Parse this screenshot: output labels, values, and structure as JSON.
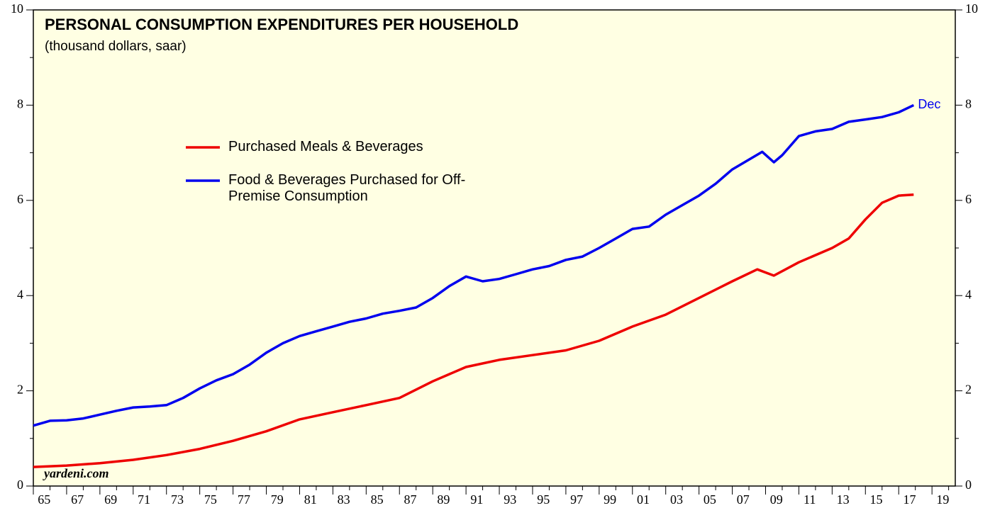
{
  "chart_data": {
    "type": "line",
    "title": "PERSONAL CONSUMPTION EXPENDITURES PER HOUSEHOLD",
    "subtitle": "(thousand dollars, saar)",
    "annotations": {
      "end_label": "Dec",
      "source": "yardeni.com"
    },
    "xlim": [
      1965,
      2020.4
    ],
    "xticks": [
      {
        "value": 1965,
        "label": "65"
      },
      {
        "value": 1967,
        "label": "67"
      },
      {
        "value": 1969,
        "label": "69"
      },
      {
        "value": 1971,
        "label": "71"
      },
      {
        "value": 1973,
        "label": "73"
      },
      {
        "value": 1975,
        "label": "75"
      },
      {
        "value": 1977,
        "label": "77"
      },
      {
        "value": 1979,
        "label": "79"
      },
      {
        "value": 1981,
        "label": "81"
      },
      {
        "value": 1983,
        "label": "83"
      },
      {
        "value": 1985,
        "label": "85"
      },
      {
        "value": 1987,
        "label": "87"
      },
      {
        "value": 1989,
        "label": "89"
      },
      {
        "value": 1991,
        "label": "91"
      },
      {
        "value": 1993,
        "label": "93"
      },
      {
        "value": 1995,
        "label": "95"
      },
      {
        "value": 1997,
        "label": "97"
      },
      {
        "value": 1999,
        "label": "99"
      },
      {
        "value": 2001,
        "label": "01"
      },
      {
        "value": 2003,
        "label": "03"
      },
      {
        "value": 2005,
        "label": "05"
      },
      {
        "value": 2007,
        "label": "07"
      },
      {
        "value": 2009,
        "label": "09"
      },
      {
        "value": 2011,
        "label": "11"
      },
      {
        "value": 2013,
        "label": "13"
      },
      {
        "value": 2015,
        "label": "15"
      },
      {
        "value": 2017,
        "label": "17"
      },
      {
        "value": 2019,
        "label": "19"
      }
    ],
    "ylim": [
      0,
      10
    ],
    "yticks": [
      0,
      2,
      4,
      6,
      8,
      10
    ],
    "yminorticks": [
      1,
      3,
      5,
      7,
      9
    ],
    "y2lim": [
      0,
      10
    ],
    "y2ticks": [
      0,
      2,
      4,
      6,
      8,
      10
    ],
    "series": [
      {
        "name": "Purchased Meals & Beverages",
        "color": "#ee0000",
        "x": [
          1965,
          1967,
          1969,
          1971,
          1973,
          1975,
          1977,
          1979,
          1981,
          1983,
          1985,
          1987,
          1989,
          1991,
          1993,
          1995,
          1997,
          1999,
          2001,
          2003,
          2005,
          2007,
          2008.5,
          2009.5,
          2011,
          2013,
          2014,
          2015,
          2016,
          2017,
          2017.9
        ],
        "values": [
          0.4,
          0.43,
          0.48,
          0.55,
          0.65,
          0.78,
          0.95,
          1.15,
          1.4,
          1.55,
          1.7,
          1.85,
          2.2,
          2.5,
          2.65,
          2.75,
          2.85,
          3.05,
          3.35,
          3.6,
          3.95,
          4.3,
          4.55,
          4.42,
          4.7,
          5.0,
          5.2,
          5.6,
          5.95,
          6.1,
          6.12
        ]
      },
      {
        "name": "Food & Beverages Purchased for Off-Premise Consumption",
        "color": "#0000ee",
        "x": [
          1965,
          1966,
          1967,
          1968,
          1969,
          1970,
          1971,
          1972,
          1973,
          1974,
          1975,
          1976,
          1977,
          1978,
          1979,
          1980,
          1981,
          1982,
          1983,
          1984,
          1985,
          1986,
          1987,
          1988,
          1989,
          1990,
          1991,
          1992,
          1993,
          1994,
          1995,
          1996,
          1997,
          1998,
          1999,
          2000,
          2001,
          2002,
          2003,
          2004,
          2005,
          2006,
          2007,
          2008.8,
          2009.5,
          2010,
          2011,
          2012,
          2013,
          2014,
          2015,
          2016,
          2017,
          2017.9
        ],
        "values": [
          1.27,
          1.37,
          1.38,
          1.42,
          1.5,
          1.58,
          1.65,
          1.67,
          1.7,
          1.85,
          2.05,
          2.22,
          2.35,
          2.55,
          2.8,
          3.0,
          3.15,
          3.25,
          3.35,
          3.45,
          3.52,
          3.62,
          3.68,
          3.75,
          3.95,
          4.2,
          4.4,
          4.3,
          4.35,
          4.45,
          4.55,
          4.62,
          4.75,
          4.82,
          5.0,
          5.2,
          5.4,
          5.45,
          5.7,
          5.9,
          6.1,
          6.35,
          6.65,
          7.02,
          6.8,
          6.95,
          7.35,
          7.45,
          7.5,
          7.65,
          7.7,
          7.75,
          7.85,
          8.0
        ]
      }
    ]
  }
}
